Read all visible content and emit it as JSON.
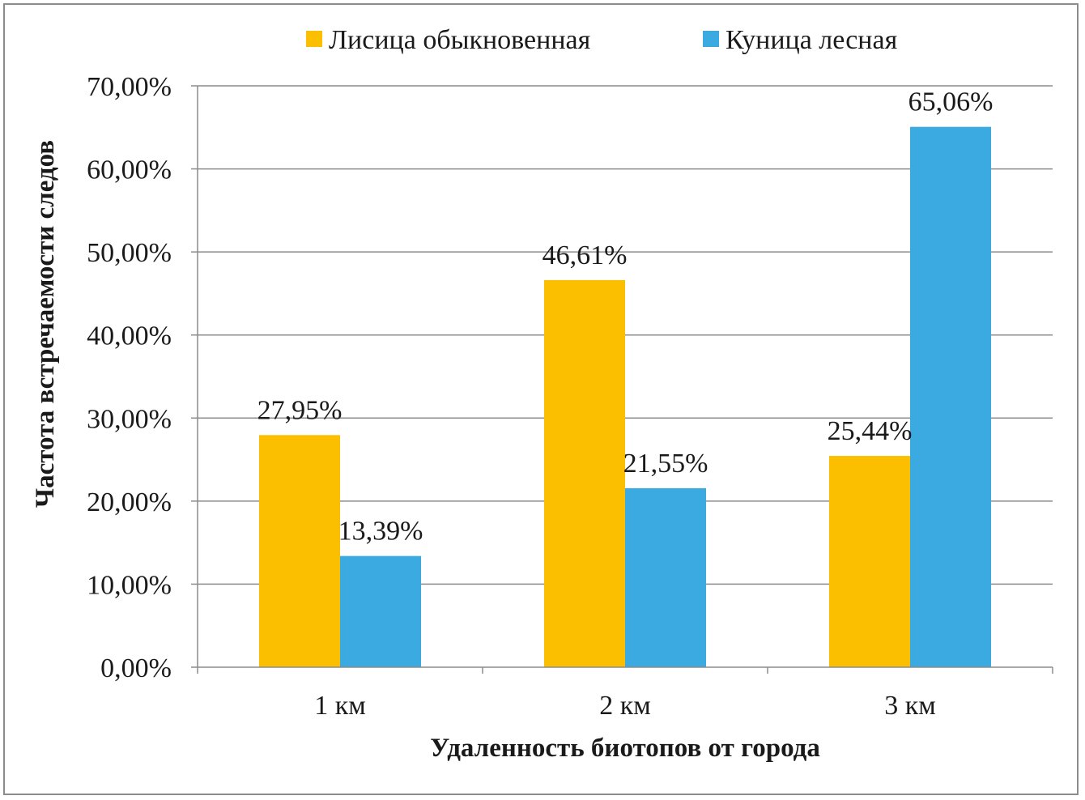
{
  "chart_data": {
    "type": "bar",
    "categories": [
      "1 км",
      "2 км",
      "3 км"
    ],
    "series": [
      {
        "name": "Лисица обыкновенная",
        "values": [
          27.95,
          46.61,
          25.44
        ],
        "labels": [
          "27,95%",
          "46,61%",
          "25,44%"
        ],
        "color": "#FBBF00"
      },
      {
        "name": "Куница лесная",
        "values": [
          13.39,
          21.55,
          65.06
        ],
        "labels": [
          "13,39%",
          "21,55%",
          "65,06%"
        ],
        "color": "#3AAAE0"
      }
    ],
    "ylim": [
      0,
      70
    ],
    "yticks": [
      0,
      10,
      20,
      30,
      40,
      50,
      60,
      70
    ],
    "ytick_labels": [
      "0,00%",
      "10,00%",
      "20,00%",
      "30,00%",
      "40,00%",
      "50,00%",
      "60,00%",
      "70,00%"
    ],
    "xlabel": "Удаленность биотопов от города",
    "ylabel": "Частота встречаемости следов",
    "grid": true,
    "legend_position": "top"
  }
}
